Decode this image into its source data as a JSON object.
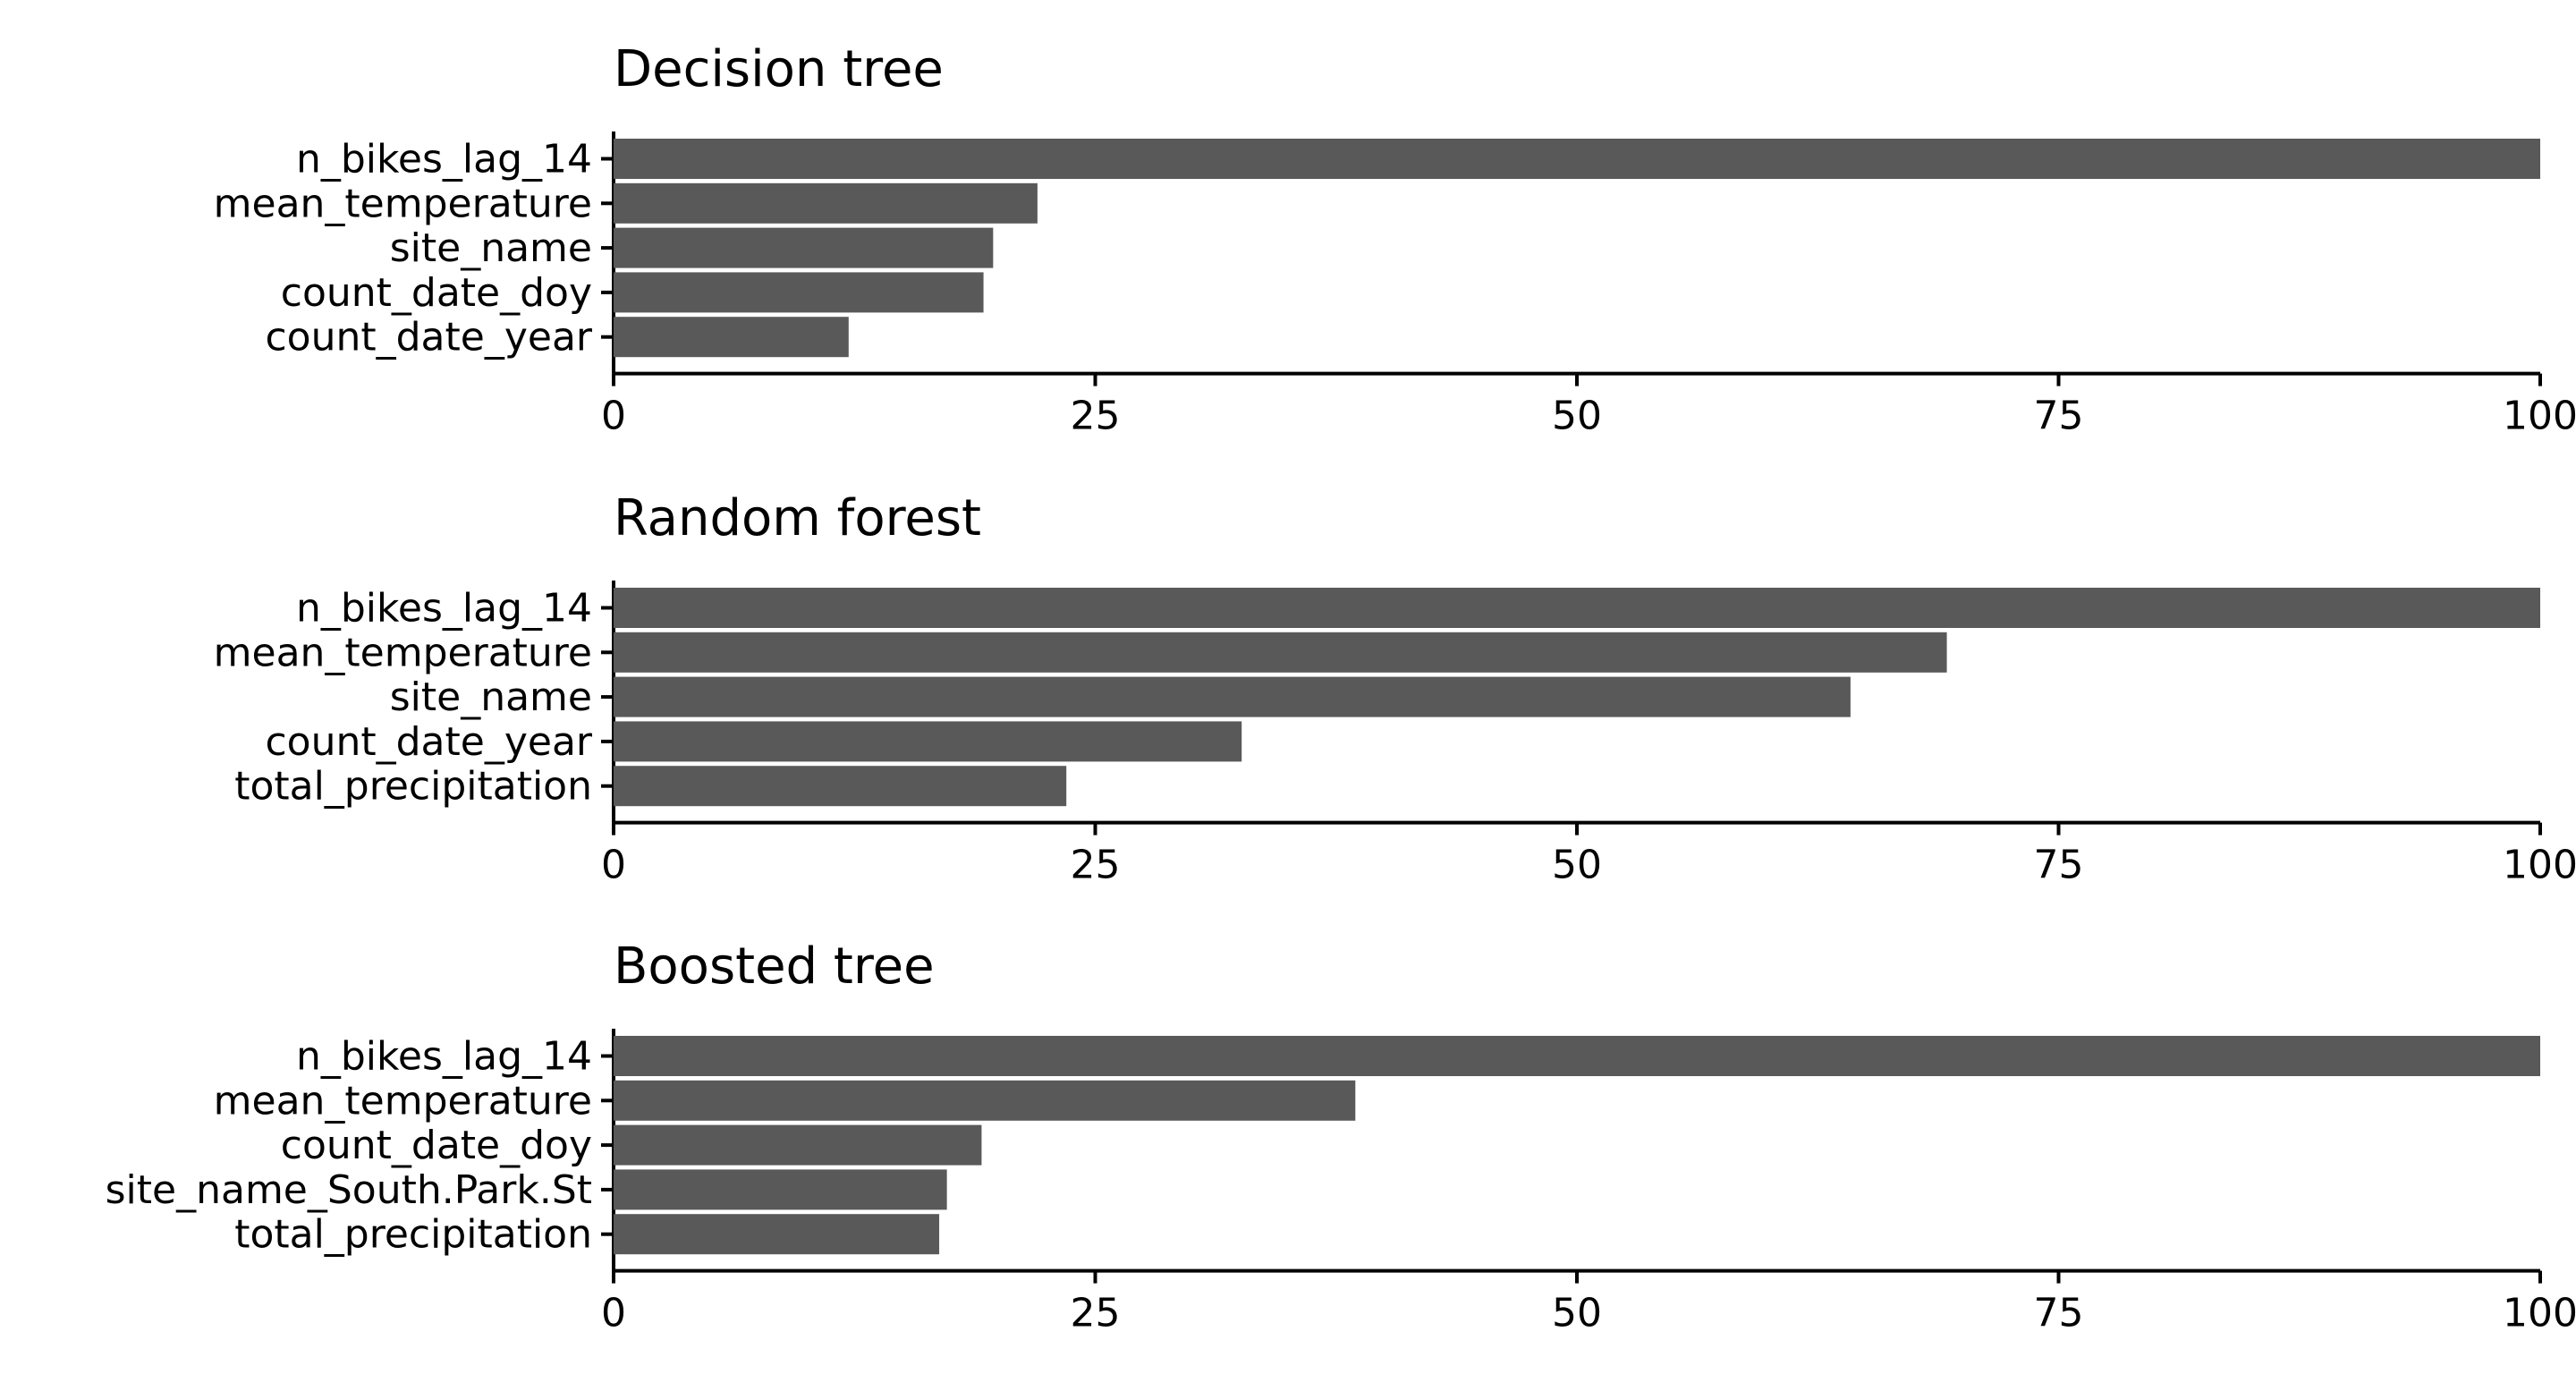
{
  "chart_data": [
    {
      "type": "bar",
      "orientation": "horizontal",
      "title": "Decision tree",
      "categories": [
        "n_bikes_lag_14",
        "mean_temperature",
        "site_name",
        "count_date_doy",
        "count_date_year"
      ],
      "values": [
        100,
        22,
        19.7,
        19.2,
        12.2
      ],
      "xlim": [
        0,
        100
      ],
      "xticks": [
        "0",
        "25",
        "50",
        "75",
        "100"
      ],
      "bar_color": "#595959",
      "grid": false,
      "legend": "none"
    },
    {
      "type": "bar",
      "orientation": "horizontal",
      "title": "Random forest",
      "categories": [
        "n_bikes_lag_14",
        "mean_temperature",
        "site_name",
        "count_date_year",
        "total_precipitation"
      ],
      "values": [
        100,
        69.2,
        64.2,
        32.6,
        23.5
      ],
      "xlim": [
        0,
        100
      ],
      "xticks": [
        "0",
        "25",
        "50",
        "75",
        "100"
      ],
      "bar_color": "#595959",
      "grid": false,
      "legend": "none"
    },
    {
      "type": "bar",
      "orientation": "horizontal",
      "title": "Boosted tree",
      "categories": [
        "n_bikes_lag_14",
        "mean_temperature",
        "count_date_doy",
        "site_name_South.Park.St",
        "total_precipitation"
      ],
      "values": [
        100,
        38.5,
        19.1,
        17.3,
        16.9
      ],
      "xlim": [
        0,
        100
      ],
      "xticks": [
        "0",
        "25",
        "50",
        "75",
        "100"
      ],
      "bar_color": "#595959",
      "grid": false,
      "legend": "none"
    }
  ]
}
